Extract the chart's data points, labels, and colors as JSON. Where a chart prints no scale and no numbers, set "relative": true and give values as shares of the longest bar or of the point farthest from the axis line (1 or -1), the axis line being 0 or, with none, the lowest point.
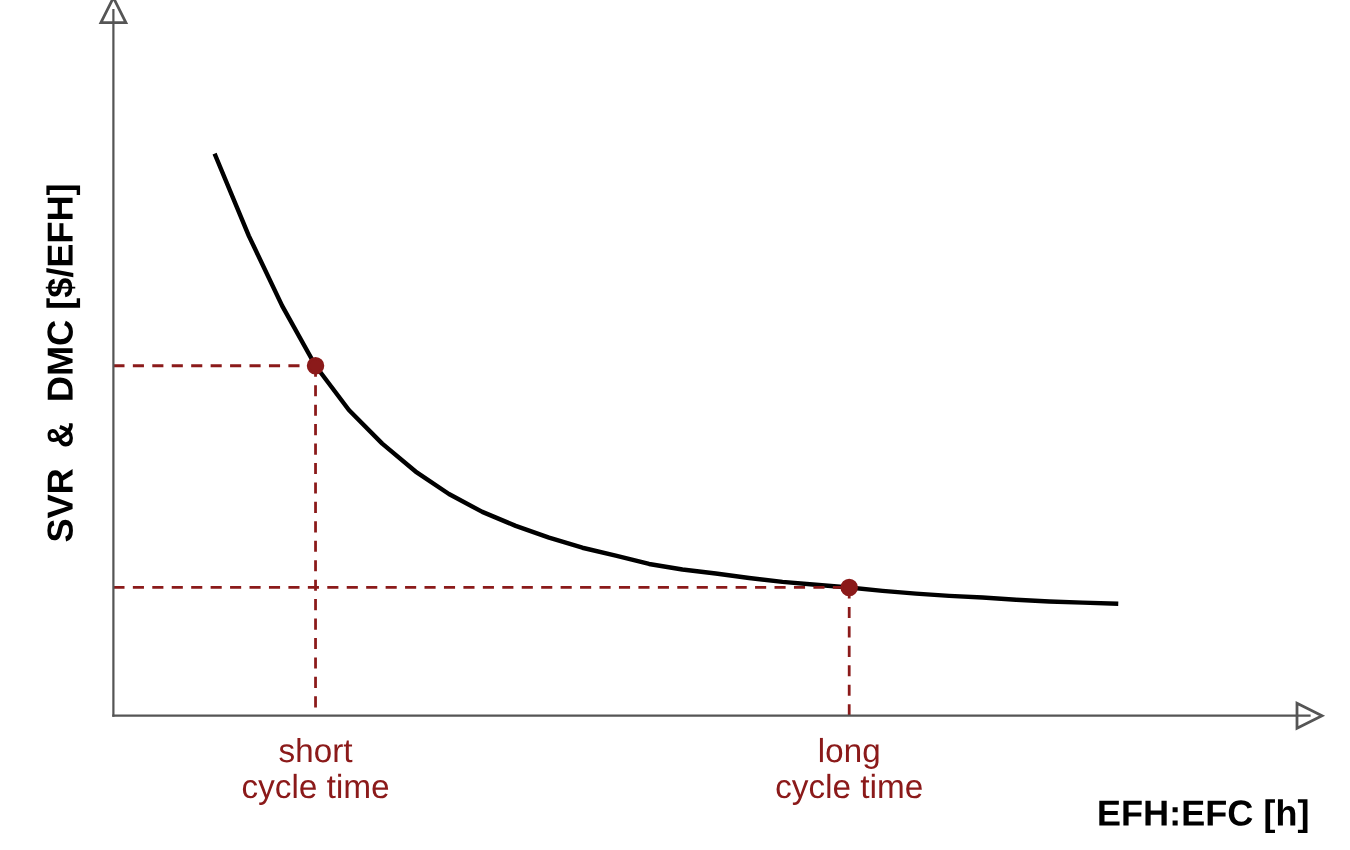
{
  "chart_data": {
    "type": "line",
    "relative": true,
    "xlabel": "EFH:EFC [h]",
    "ylabel": "SVR  &  DMC [$/EFH]",
    "categories": [
      null,
      null,
      null,
      "short\ncycle time",
      null,
      null,
      null,
      null,
      null,
      null,
      null,
      null,
      null,
      null,
      null,
      null,
      null,
      null,
      null,
      "long\ncycle time",
      null,
      null,
      null,
      null,
      null,
      null,
      null,
      null
    ],
    "series": [
      {
        "type": "line",
        "color": "#000000",
        "values": [
          1,
          0.857,
          0.732,
          0.625,
          0.546,
          0.486,
          0.436,
          0.396,
          0.364,
          0.339,
          0.318,
          0.3,
          0.286,
          0.271,
          0.261,
          0.254,
          0.246,
          0.239,
          0.234,
          0.229,
          0.223,
          0.218,
          0.214,
          0.211,
          0.207,
          0.204,
          0.202,
          0.2
        ]
      },
      {
        "type": "scatter",
        "color": "#8b1a1a",
        "values": [
          null,
          null,
          null,
          0.625,
          null,
          null,
          null,
          null,
          null,
          null,
          null,
          null,
          null,
          null,
          null,
          null,
          null,
          null,
          null,
          0.229,
          null,
          null,
          null,
          null,
          null,
          null,
          null,
          null
        ]
      }
    ],
    "ref_lines": [
      {
        "axis": "y",
        "value": 0.625,
        "color": "#8b1a1a",
        "line_style": "dashed"
      },
      {
        "axis": "y",
        "value": 0.229,
        "color": "#8b1a1a",
        "line_style": "dashed"
      }
    ],
    "grid": false,
    "legend": false
  }
}
